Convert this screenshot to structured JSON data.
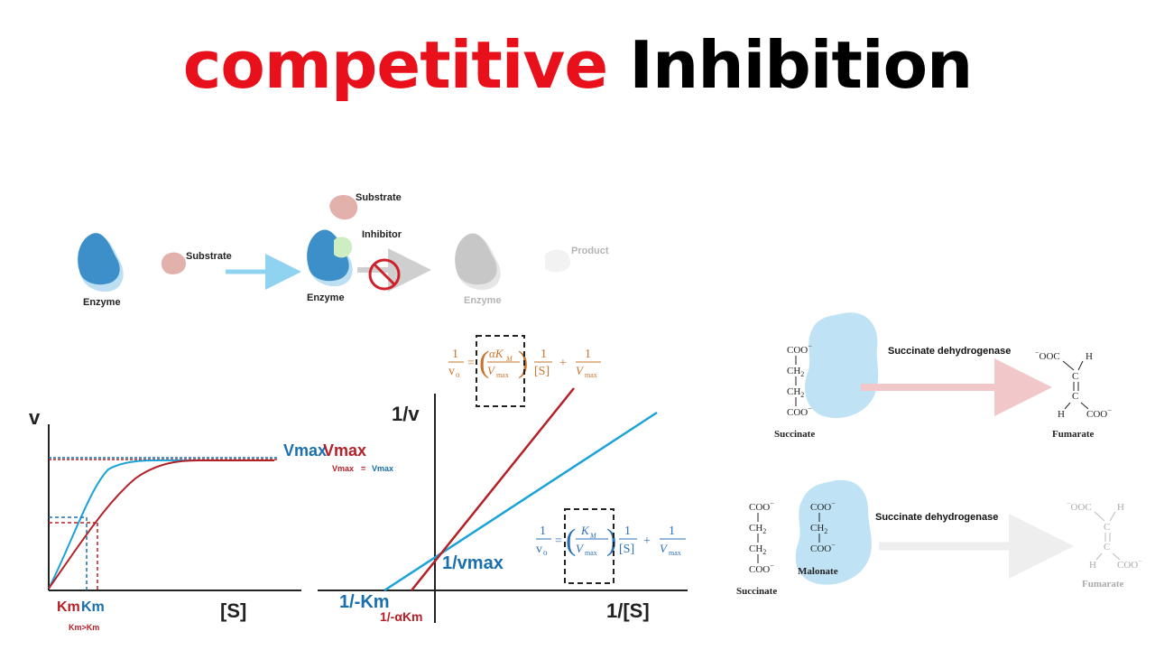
{
  "title": {
    "part1": "competitive",
    "part2": "Inhibition"
  },
  "mechanism": {
    "enzyme1": "Enzyme",
    "substrate1": "Substrate",
    "substrate2": "Substrate",
    "inhibitor": "Inhibitor",
    "enzyme2": "Enzyme",
    "enzyme3": "Enzyme",
    "product": "Product"
  },
  "mm_plot": {
    "y_label": "v",
    "x_label": "[S]",
    "vmax_blue": "Vmax",
    "vmax_red": "Vmax",
    "vmax_eq_left": "Vmax",
    "vmax_eq_sign": "=",
    "vmax_eq_right": "Vmax",
    "km_red": "Km",
    "km_blue": "Km",
    "km_compare": "Km>Km"
  },
  "lb_plot": {
    "y_label": "1/v",
    "x_label": "1/[S]",
    "y_intercept": "1/vmax",
    "x_int_blue": "1/-Km",
    "x_int_red": "1/-αKm",
    "eq_inhibited": "1/vo = (αKM/Vmax) 1/[S] + 1/Vmax",
    "eq_normal": "1/vo = (KM/Vmax) 1/[S] + 1/Vmax"
  },
  "succinate_panel": {
    "enzyme_label_top": "Succinate dehydrogenase",
    "enzyme_label_bottom": "Succinate dehydrogenase",
    "succinate_top": "Succinate",
    "fumarate_top": "Fumarate",
    "succinate_bottom": "Succinate",
    "malonate": "Malonate",
    "fumarate_bottom": "Fumarate"
  },
  "colors": {
    "title_red": "#e8101a",
    "blue": "#1aa3d8",
    "red": "#b52027",
    "orange": "#c8742a"
  }
}
